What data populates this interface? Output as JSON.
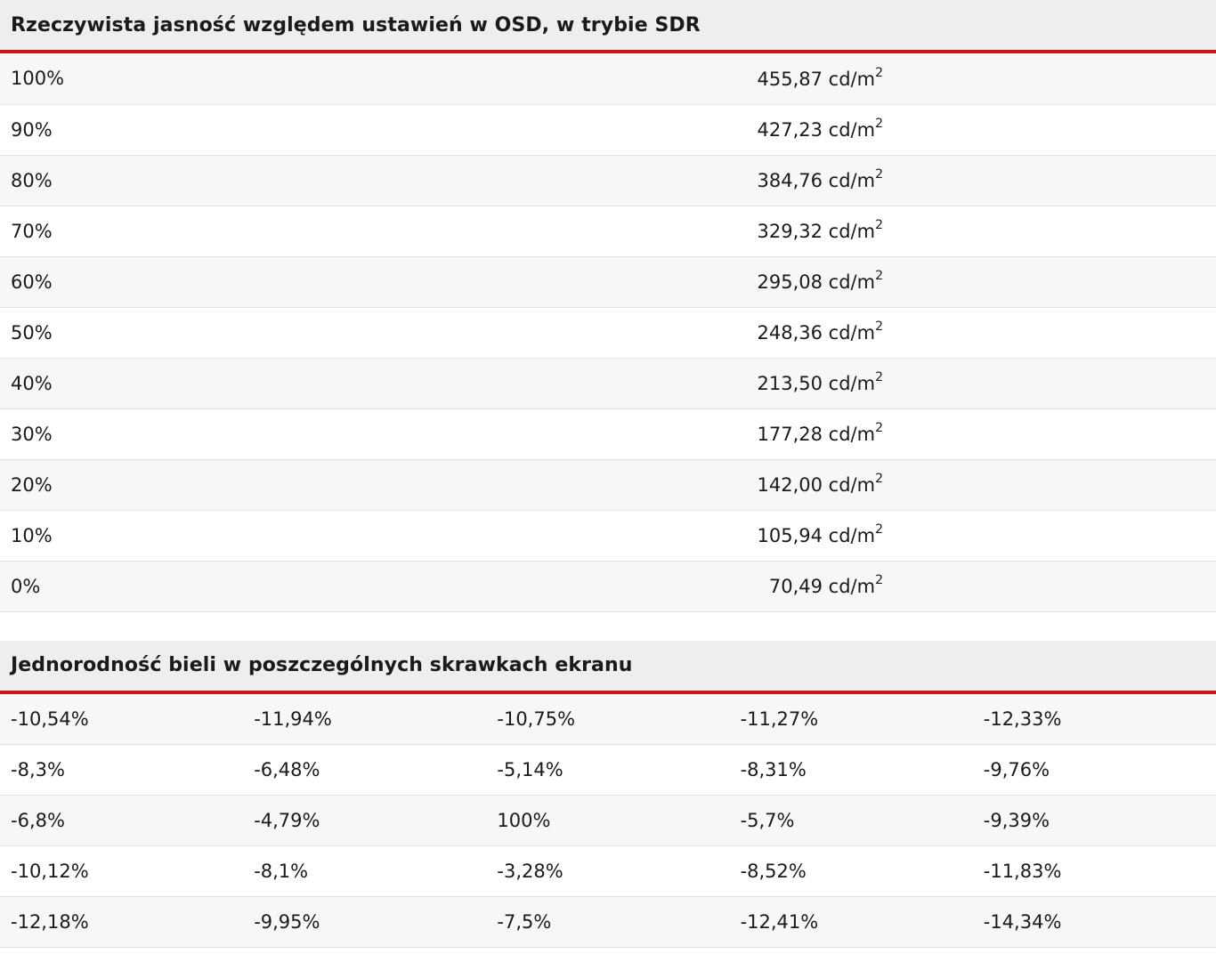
{
  "brightness": {
    "title": "Rzeczywista jasność względem ustawień w OSD, w trybie SDR",
    "unit": "cd/m",
    "unit_exp": "2",
    "rows": [
      {
        "setting": "100%",
        "value": "455,87"
      },
      {
        "setting": "90%",
        "value": "427,23"
      },
      {
        "setting": "80%",
        "value": "384,76"
      },
      {
        "setting": "70%",
        "value": "329,32"
      },
      {
        "setting": "60%",
        "value": "295,08"
      },
      {
        "setting": "50%",
        "value": "248,36"
      },
      {
        "setting": "40%",
        "value": "213,50"
      },
      {
        "setting": "30%",
        "value": "177,28"
      },
      {
        "setting": "20%",
        "value": "142,00"
      },
      {
        "setting": "10%",
        "value": "105,94"
      },
      {
        "setting": "0%",
        "value": "70,49"
      }
    ]
  },
  "uniformity": {
    "title": "Jednorodność bieli w poszczególnych skrawkach ekranu",
    "rows": [
      [
        "-10,54%",
        "-11,94%",
        "-10,75%",
        "-11,27%",
        "-12,33%"
      ],
      [
        "-8,3%",
        "-6,48%",
        "-5,14%",
        "-8,31%",
        "-9,76%"
      ],
      [
        "-6,8%",
        "-4,79%",
        "100%",
        "-5,7%",
        "-9,39%"
      ],
      [
        "-10,12%",
        "-8,1%",
        "-3,28%",
        "-8,52%",
        "-11,83%"
      ],
      [
        "-12,18%",
        "-9,95%",
        "-7,5%",
        "-12,41%",
        "-14,34%"
      ]
    ]
  }
}
